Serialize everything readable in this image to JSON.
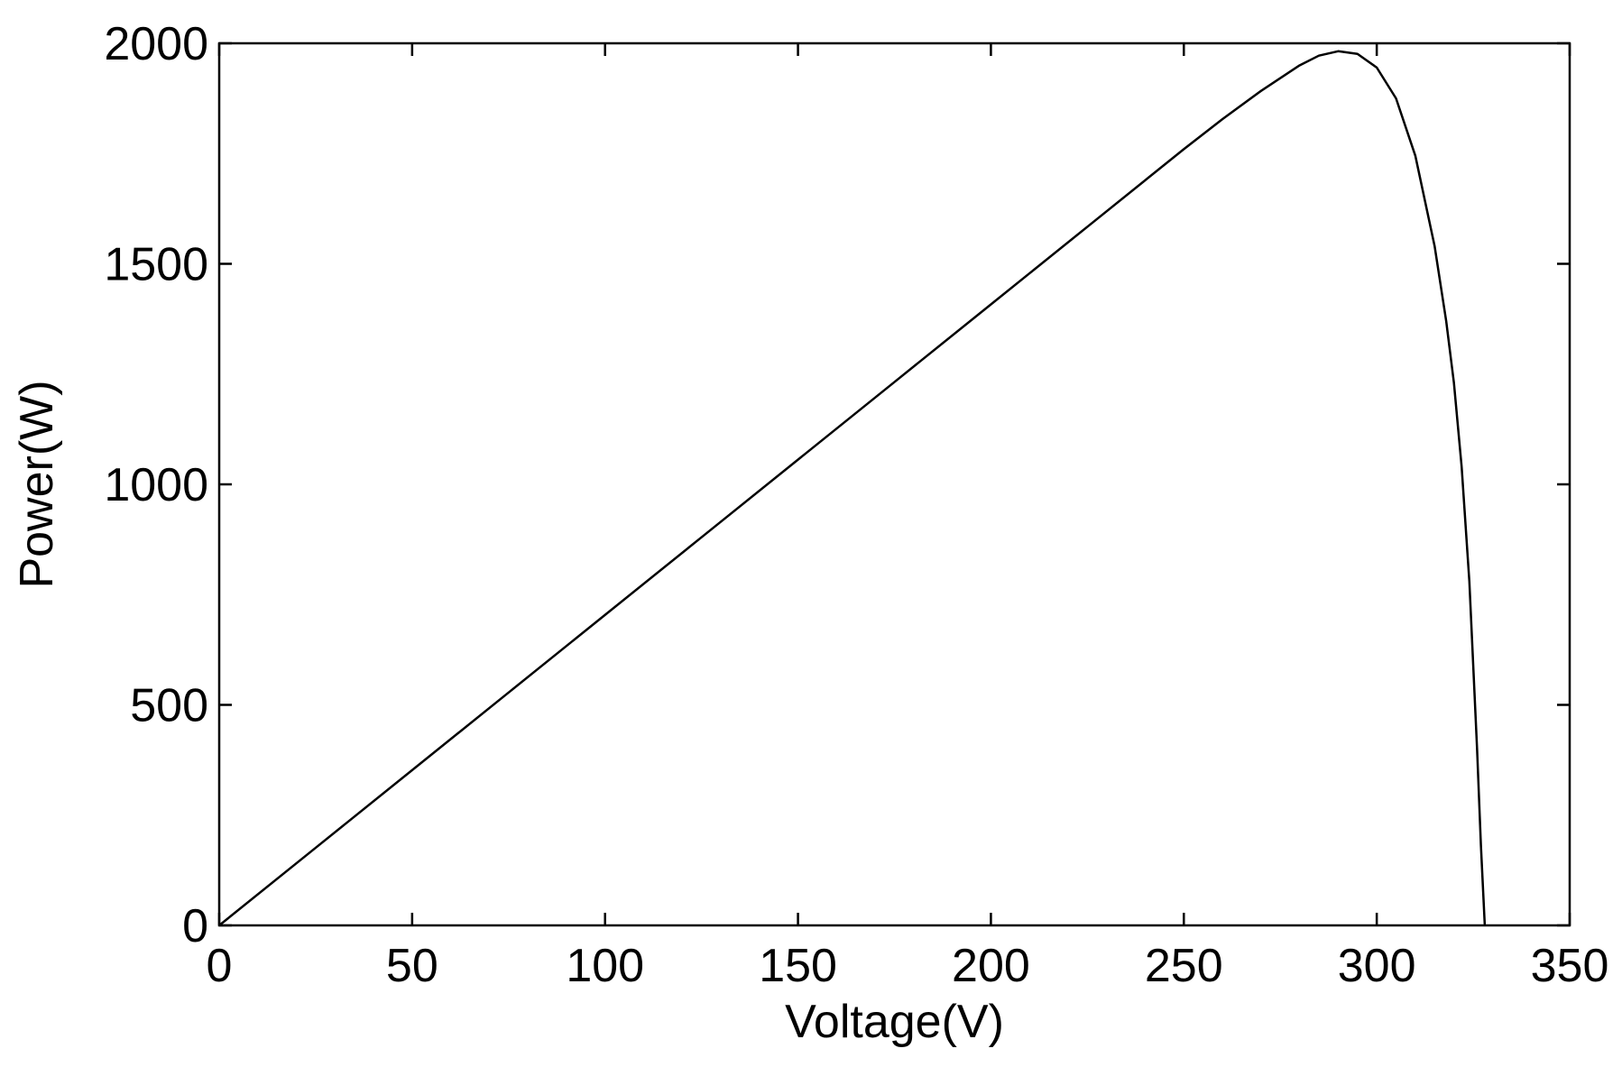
{
  "chart_data": {
    "type": "line",
    "title": "",
    "xlabel": "Voltage(V)",
    "ylabel": "Power(W)",
    "xlim": [
      0,
      350
    ],
    "ylim": [
      0,
      2000
    ],
    "xticks": [
      0,
      50,
      100,
      150,
      200,
      250,
      300,
      350
    ],
    "yticks": [
      0,
      500,
      1000,
      1500,
      2000
    ],
    "xtick_labels": [
      "0",
      "50",
      "100",
      "150",
      "200",
      "250",
      "300",
      "350"
    ],
    "ytick_labels": [
      "0",
      "500",
      "1000",
      "1500",
      "2000"
    ],
    "grid": false,
    "legend": "none",
    "colors": {
      "line": "#000000",
      "axes": "#000000",
      "background": "#ffffff"
    },
    "series": [
      {
        "x": [
          0,
          25,
          50,
          75,
          100,
          125,
          150,
          175,
          200,
          225,
          250,
          260,
          270,
          280,
          285,
          290,
          295,
          300,
          305,
          310,
          315,
          318,
          320,
          322,
          324,
          326,
          327,
          328
        ],
        "y": [
          0,
          176,
          352,
          528,
          704,
          880,
          1056,
          1232,
          1408,
          1584,
          1760,
          1828,
          1892,
          1950,
          1972,
          1982,
          1976,
          1945,
          1875,
          1745,
          1540,
          1370,
          1230,
          1040,
          780,
          400,
          180,
          0
        ]
      }
    ]
  }
}
